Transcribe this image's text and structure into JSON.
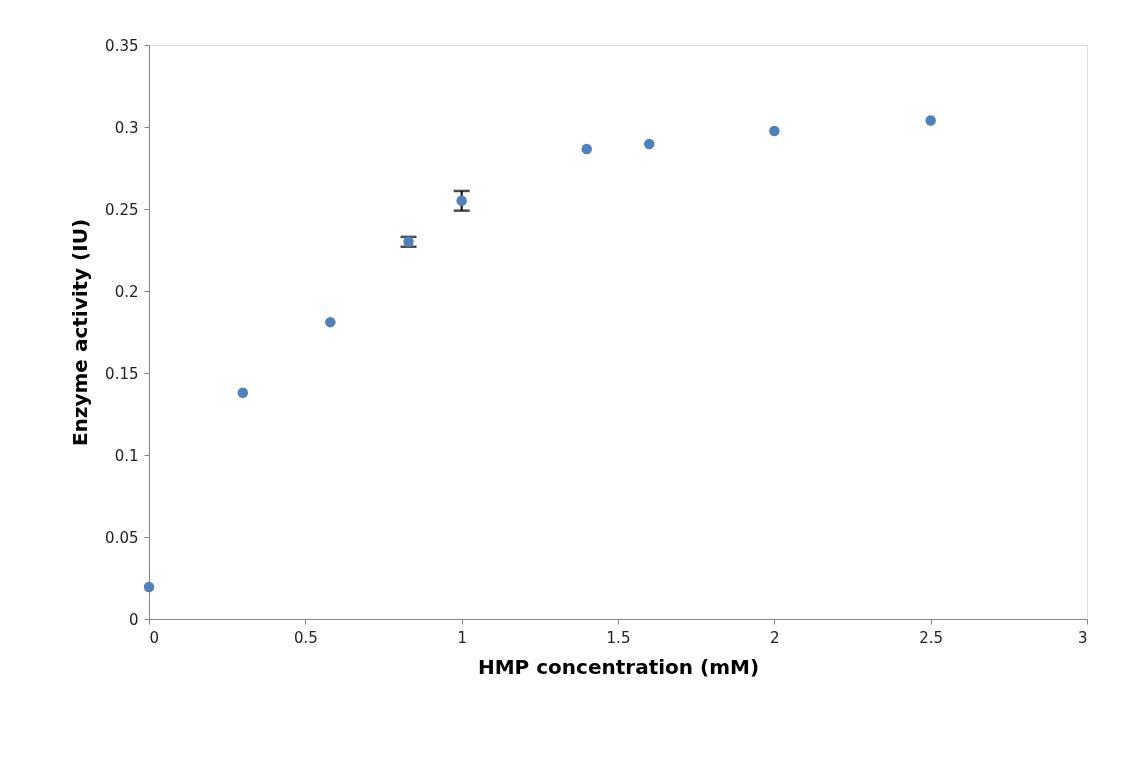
{
  "chart_data": {
    "type": "scatter",
    "xlabel": "HMP concentration (mM)",
    "ylabel": "Enzyme activity (IU)",
    "x": [
      0,
      0.3,
      0.58,
      0.83,
      1.0,
      1.4,
      1.6,
      2.0,
      2.5
    ],
    "series": [
      {
        "color": "#4f81bd",
        "values": [
          0.0195,
          0.138,
          0.181,
          0.23,
          0.255,
          0.2866,
          0.2896,
          0.2976,
          0.304
        ],
        "errors": [
          null,
          null,
          null,
          0.003,
          0.006,
          null,
          null,
          null,
          null
        ]
      }
    ],
    "xlim": [
      0,
      3
    ],
    "xticks": [
      0,
      0.5,
      1,
      1.5,
      2,
      2.5,
      3
    ],
    "ylim": [
      0,
      0.35
    ],
    "yticks": [
      0,
      0.05,
      0.1,
      0.15,
      0.2,
      0.25,
      0.3,
      0.35
    ],
    "grid": false,
    "marker": "circle",
    "legend": false
  }
}
